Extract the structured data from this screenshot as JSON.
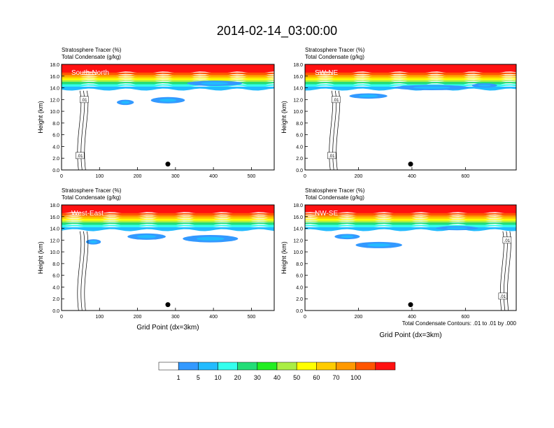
{
  "figure": {
    "title": "2014-02-14_03:00:00",
    "contour_note": "Total Condensate Contours: .01 to .01 by .000"
  },
  "colorbar": {
    "levels": [
      "1",
      "5",
      "10",
      "20",
      "30",
      "40",
      "50",
      "60",
      "70",
      "100"
    ],
    "colors": [
      "#ffffff",
      "#3399ff",
      "#22bbff",
      "#33ffee",
      "#22dd77",
      "#22ee22",
      "#aaee44",
      "#ffff00",
      "#ffcc00",
      "#ff9900",
      "#ff5500",
      "#ff1111"
    ]
  },
  "chart_data": [
    {
      "type": "heatmap",
      "name": "South-North",
      "label_left_1": "Stratosphere Tracer   (%)",
      "label_left_2": "Total Condensate   (g/kg)",
      "ylabel": "Height (km)",
      "xlabel": "",
      "x_ticks": [
        "0",
        "100",
        "200",
        "300",
        "400",
        "500"
      ],
      "y_ticks": [
        "0.0",
        "2.0",
        "4.0",
        "6.0",
        "8.0",
        "10.0",
        "12.0",
        "14.0",
        "16.0",
        "18.0"
      ],
      "xlim": [
        0,
        560
      ],
      "ylim": [
        0,
        18
      ],
      "contour_labels": [
        ".01",
        ".01"
      ],
      "marker": {
        "x": 280,
        "y": 1.0
      }
    },
    {
      "type": "heatmap",
      "name": "SW-NE",
      "label_left_1": "Stratosphere Tracer   (%)",
      "label_left_2": "Total Condensate   (g/kg)",
      "ylabel": "Height (km)",
      "xlabel": "",
      "x_ticks": [
        "0",
        "200",
        "400",
        "600"
      ],
      "y_ticks": [
        "0.0",
        "2.0",
        "4.0",
        "6.0",
        "8.0",
        "10.0",
        "12.0",
        "14.0",
        "16.0",
        "18.0"
      ],
      "xlim": [
        0,
        790
      ],
      "ylim": [
        0,
        18
      ],
      "contour_labels": [
        ".01",
        ".01"
      ],
      "marker": {
        "x": 395,
        "y": 1.0
      }
    },
    {
      "type": "heatmap",
      "name": "West-East",
      "label_left_1": "Stratosphere Tracer   (%)",
      "label_left_2": "Total Condensate   (g/kg)",
      "ylabel": "Height (km)",
      "xlabel": "Grid Point (dx=3km)",
      "x_ticks": [
        "0",
        "100",
        "200",
        "300",
        "400",
        "500"
      ],
      "y_ticks": [
        "0.0",
        "2.0",
        "4.0",
        "6.0",
        "8.0",
        "10.0",
        "12.0",
        "14.0",
        "16.0",
        "18.0"
      ],
      "xlim": [
        0,
        560
      ],
      "ylim": [
        0,
        18
      ],
      "contour_labels": [],
      "marker": {
        "x": 280,
        "y": 1.0
      }
    },
    {
      "type": "heatmap",
      "name": "NW-SE",
      "label_left_1": "Stratosphere Tracer   (%)",
      "label_left_2": "Total Condensate   (g/kg)",
      "ylabel": "Height (km)",
      "xlabel": "Grid Point (dx=3km)",
      "x_ticks": [
        "0",
        "200",
        "400",
        "600"
      ],
      "y_ticks": [
        "0.0",
        "2.0",
        "4.0",
        "6.0",
        "8.0",
        "10.0",
        "12.0",
        "14.0",
        "16.0",
        "18.0"
      ],
      "xlim": [
        0,
        790
      ],
      "ylim": [
        0,
        18
      ],
      "contour_labels": [
        ".01",
        ".01"
      ],
      "marker": {
        "x": 395,
        "y": 1.0
      }
    }
  ]
}
